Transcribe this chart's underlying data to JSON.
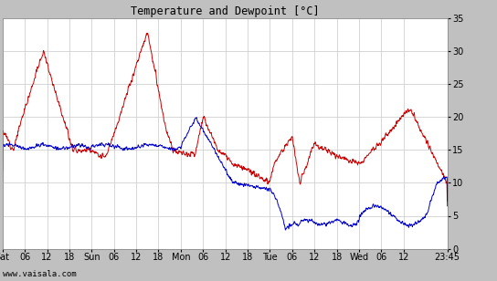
{
  "title": "Temperature and Dewpoint [°C]",
  "bg_color": "#c0c0c0",
  "plot_bg_color": "#ffffff",
  "grid_color": "#c8c8c8",
  "temp_color": "#cc0000",
  "dewp_color": "#0000cc",
  "ylim": [
    0,
    35
  ],
  "yticks": [
    0,
    5,
    10,
    15,
    20,
    25,
    30,
    35
  ],
  "watermark": "www.vaisala.com",
  "line_width": 0.7,
  "x_tick_labels": [
    "Sat",
    "06",
    "12",
    "18",
    "Sun",
    "06",
    "12",
    "18",
    "Mon",
    "06",
    "12",
    "18",
    "Tue",
    "06",
    "12",
    "18",
    "Wed",
    "06",
    "12",
    "23:45"
  ],
  "x_tick_positions": [
    0,
    6,
    12,
    18,
    24,
    30,
    36,
    42,
    48,
    54,
    60,
    66,
    72,
    78,
    84,
    90,
    96,
    102,
    108,
    119.75
  ],
  "xlim": [
    0,
    119.75
  ]
}
